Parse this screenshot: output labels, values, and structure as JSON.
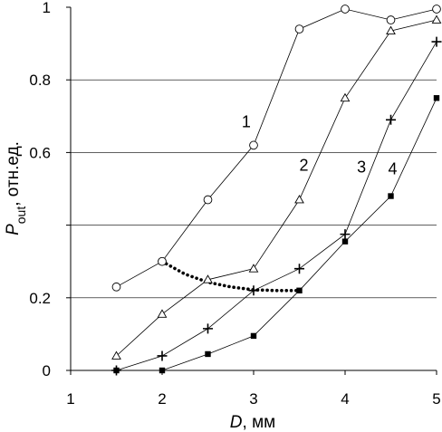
{
  "chart_data": {
    "type": "line",
    "xlabel": {
      "main": "D",
      "unit": ", мм"
    },
    "ylabel": {
      "main": "P",
      "subscript": "out",
      "unit": ", отн.ед."
    },
    "xlim": [
      1,
      5
    ],
    "ylim": [
      0,
      1
    ],
    "xticks": [
      "1",
      "2",
      "3",
      "4",
      "5"
    ],
    "yticks": [
      {
        "value": 0,
        "label": "0"
      },
      {
        "value": 0.2,
        "label": "0.2"
      },
      {
        "value": 0.4,
        "label": ""
      },
      {
        "value": 0.6,
        "label": "0.6"
      },
      {
        "value": 0.8,
        "label": "0.8"
      },
      {
        "value": 1,
        "label": "1"
      }
    ],
    "grid": "horizontal",
    "series": [
      {
        "label": "1",
        "marker": "circle",
        "label_at": [
          2.92,
          0.67
        ],
        "x": [
          1.5,
          2,
          2.5,
          3,
          3.5,
          4,
          4.5,
          5
        ],
        "y": [
          0.23,
          0.3,
          0.47,
          0.62,
          0.94,
          0.995,
          0.965,
          0.995
        ]
      },
      {
        "label": "2",
        "marker": "triangle",
        "label_at": [
          3.55,
          0.55
        ],
        "x": [
          1.5,
          2,
          2.5,
          3,
          3.5,
          4,
          4.5,
          5
        ],
        "y": [
          0.04,
          0.155,
          0.25,
          0.28,
          0.47,
          0.75,
          0.935,
          0.965
        ]
      },
      {
        "label": "3",
        "marker": "plus",
        "label_at": [
          4.18,
          0.545
        ],
        "x": [
          1.5,
          2,
          2.5,
          3,
          3.5,
          4,
          4.5,
          5
        ],
        "y": [
          0.0,
          0.04,
          0.115,
          0.22,
          0.28,
          0.375,
          0.69,
          0.905
        ]
      },
      {
        "label": "4",
        "marker": "square",
        "label_at": [
          4.52,
          0.54
        ],
        "x": [
          1.5,
          2,
          2.5,
          3,
          3.5,
          4,
          4.5,
          5
        ],
        "y": [
          0.0,
          0.0,
          0.045,
          0.095,
          0.22,
          0.355,
          0.48,
          0.75
        ]
      }
    ],
    "dotted_curve": {
      "x": [
        2,
        2.25,
        2.5,
        2.75,
        3,
        3.25,
        3.5
      ],
      "y": [
        0.3,
        0.265,
        0.243,
        0.23,
        0.222,
        0.22,
        0.22
      ],
      "start_marker": "circle-dot"
    }
  }
}
